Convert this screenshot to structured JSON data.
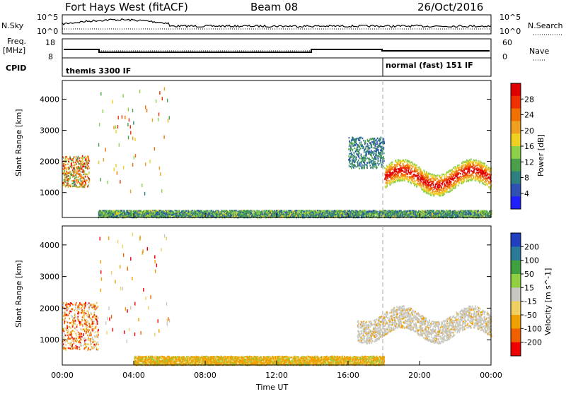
{
  "header": {
    "station": "Fort Hays West (fitACF)",
    "beam": "Beam 08",
    "date": "26/Oct/2016"
  },
  "noise_panel": {
    "left_label": "N.Sky",
    "right_label": "N.Search",
    "left_ticks": [
      "10^5",
      "10^0"
    ],
    "right_ticks": [
      "10^5",
      "10^0"
    ]
  },
  "freq_panel": {
    "left_label_1": "Freq.",
    "left_label_2": "[MHz]",
    "right_label": "Nave",
    "left_ticks": [
      "18",
      "8"
    ],
    "right_ticks": [
      "60",
      "0"
    ]
  },
  "cpid_panel": {
    "label": "CPID",
    "modes": [
      "themis 3300 IF",
      "normal (fast) 151 IF"
    ]
  },
  "colors": {
    "power": [
      "#2020ff",
      "#2e52b4",
      "#2f7f7f",
      "#4aa04a",
      "#8ed04a",
      "#f0d020",
      "#f0a020",
      "#f07000",
      "#f03000",
      "#e00000"
    ],
    "velocity": [
      "#f00000",
      "#f06000",
      "#f0a000",
      "#f0d060",
      "#c8c8c0",
      "#90d040",
      "#40a040",
      "#2a7a9a",
      "#2040c0"
    ]
  },
  "chart_data": [
    {
      "type": "heatmap",
      "name": "power",
      "xlabel": "Time UT",
      "ylabel": "Slant Range [km]",
      "xlim": [
        0,
        24
      ],
      "ylim": [
        200,
        4600
      ],
      "x_ticks": [
        "00:00",
        "04:00",
        "08:00",
        "12:00",
        "16:00",
        "20:00",
        "00:00"
      ],
      "y_ticks": [
        "1000",
        "2000",
        "3000",
        "4000"
      ],
      "colorbar": {
        "label": "Power [dB]",
        "ticks": [
          "4",
          "8",
          "12",
          "16",
          "20",
          "24",
          "28"
        ],
        "range": [
          0,
          30
        ]
      },
      "mode_change_time": 18.0,
      "features": [
        {
          "region": "early evening echoes",
          "t_start": 0.0,
          "t_end": 1.5,
          "range_km": [
            1200,
            2200
          ],
          "power_db": [
            8,
            28
          ]
        },
        {
          "region": "ground scatter band",
          "t_start": 2.0,
          "t_end": 24.0,
          "range_km": [
            220,
            450
          ],
          "power_db": [
            4,
            16
          ]
        },
        {
          "region": "afternoon arc",
          "t_start": 16.0,
          "t_end": 18.0,
          "range_km": [
            1800,
            2800
          ],
          "power_db": [
            4,
            12
          ]
        },
        {
          "region": "post-mode-change band",
          "t_start": 18.0,
          "t_end": 24.0,
          "range_km": [
            1000,
            2200
          ],
          "power_db": [
            8,
            30
          ]
        }
      ]
    },
    {
      "type": "heatmap",
      "name": "velocity",
      "xlabel": "Time UT",
      "ylabel": "Slant Range [km]",
      "xlim": [
        0,
        24
      ],
      "ylim": [
        200,
        4600
      ],
      "x_ticks": [
        "00:00",
        "04:00",
        "08:00",
        "12:00",
        "16:00",
        "20:00",
        "00:00"
      ],
      "y_ticks": [
        "1000",
        "2000",
        "3000",
        "4000"
      ],
      "colorbar": {
        "label": "Velocity [m s^-1]",
        "ticks": [
          "200",
          "100",
          "50",
          "15",
          "-15",
          "-50",
          "-100",
          "-200"
        ],
        "range": [
          -250,
          250
        ]
      },
      "mode_change_time": 18.0,
      "features": [
        {
          "region": "early evening echoes",
          "t_start": 0.0,
          "t_end": 2.0,
          "range_km": [
            700,
            2200
          ],
          "velocity_ms": [
            -200,
            15
          ]
        },
        {
          "region": "ground scatter band",
          "t_start": 4.0,
          "t_end": 18.0,
          "range_km": [
            220,
            500
          ],
          "velocity_ms": [
            -100,
            50
          ]
        },
        {
          "region": "post-mode-change band",
          "t_start": 16.5,
          "t_end": 24.0,
          "range_km": [
            1000,
            2700
          ],
          "velocity_ms": [
            -15,
            15
          ]
        }
      ]
    }
  ]
}
